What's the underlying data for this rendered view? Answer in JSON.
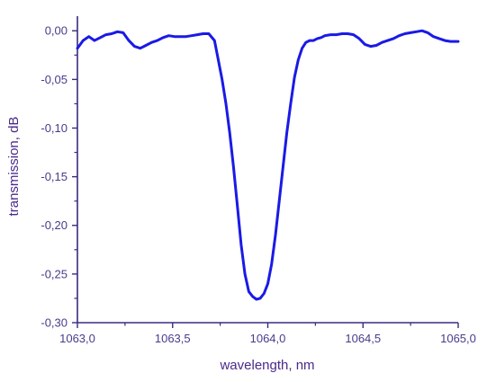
{
  "chart_data": {
    "type": "line",
    "title": "",
    "xlabel": "wavelength, nm",
    "ylabel": "transmission, dB",
    "xlim": [
      1063.0,
      1065.0
    ],
    "ylim": [
      -0.3,
      0.015
    ],
    "x_ticks": [
      1063.0,
      1063.5,
      1064.0,
      1064.5,
      1065.0
    ],
    "x_tick_labels": [
      "1063,0",
      "1063,5",
      "1064,0",
      "1064,5",
      "1065,0"
    ],
    "y_ticks": [
      0.0,
      -0.05,
      -0.1,
      -0.15,
      -0.2,
      -0.25,
      -0.3
    ],
    "y_tick_labels": [
      "0,00",
      "-0,05",
      "-0,10",
      "-0,15",
      "-0,20",
      "-0,25",
      "-0,30"
    ],
    "grid": false,
    "colors": {
      "axis": "#3b2a82",
      "line": "#1a1ae6",
      "text": "#4a3a8c"
    },
    "series": [
      {
        "x": [
          1063.0,
          1063.03,
          1063.06,
          1063.09,
          1063.12,
          1063.15,
          1063.18,
          1063.21,
          1063.24,
          1063.27,
          1063.3,
          1063.33,
          1063.36,
          1063.39,
          1063.42,
          1063.45,
          1063.48,
          1063.51,
          1063.54,
          1063.57,
          1063.6,
          1063.63,
          1063.66,
          1063.69,
          1063.72,
          1063.74,
          1063.76,
          1063.78,
          1063.8,
          1063.82,
          1063.84,
          1063.86,
          1063.88,
          1063.9,
          1063.92,
          1063.94,
          1063.96,
          1063.98,
          1064.0,
          1064.02,
          1064.04,
          1064.06,
          1064.08,
          1064.1,
          1064.12,
          1064.14,
          1064.16,
          1064.18,
          1064.2,
          1064.22,
          1064.24,
          1064.26,
          1064.28,
          1064.3,
          1064.33,
          1064.36,
          1064.39,
          1064.42,
          1064.45,
          1064.48,
          1064.51,
          1064.54,
          1064.57,
          1064.6,
          1064.63,
          1064.66,
          1064.69,
          1064.72,
          1064.75,
          1064.78,
          1064.81,
          1064.84,
          1064.87,
          1064.9,
          1064.93,
          1064.96,
          1065.0
        ],
        "y": [
          -0.018,
          -0.01,
          -0.006,
          -0.01,
          -0.007,
          -0.004,
          -0.003,
          -0.001,
          -0.002,
          -0.01,
          -0.016,
          -0.018,
          -0.015,
          -0.012,
          -0.01,
          -0.007,
          -0.005,
          -0.006,
          -0.006,
          -0.006,
          -0.005,
          -0.004,
          -0.003,
          -0.003,
          -0.01,
          -0.03,
          -0.05,
          -0.075,
          -0.105,
          -0.14,
          -0.18,
          -0.22,
          -0.25,
          -0.268,
          -0.273,
          -0.276,
          -0.275,
          -0.27,
          -0.26,
          -0.24,
          -0.21,
          -0.175,
          -0.14,
          -0.105,
          -0.075,
          -0.048,
          -0.03,
          -0.018,
          -0.012,
          -0.01,
          -0.01,
          -0.008,
          -0.007,
          -0.005,
          -0.004,
          -0.004,
          -0.003,
          -0.003,
          -0.004,
          -0.008,
          -0.014,
          -0.016,
          -0.015,
          -0.012,
          -0.01,
          -0.008,
          -0.005,
          -0.003,
          -0.002,
          -0.001,
          0.0,
          -0.002,
          -0.006,
          -0.008,
          -0.01,
          -0.011,
          -0.011
        ]
      }
    ]
  }
}
